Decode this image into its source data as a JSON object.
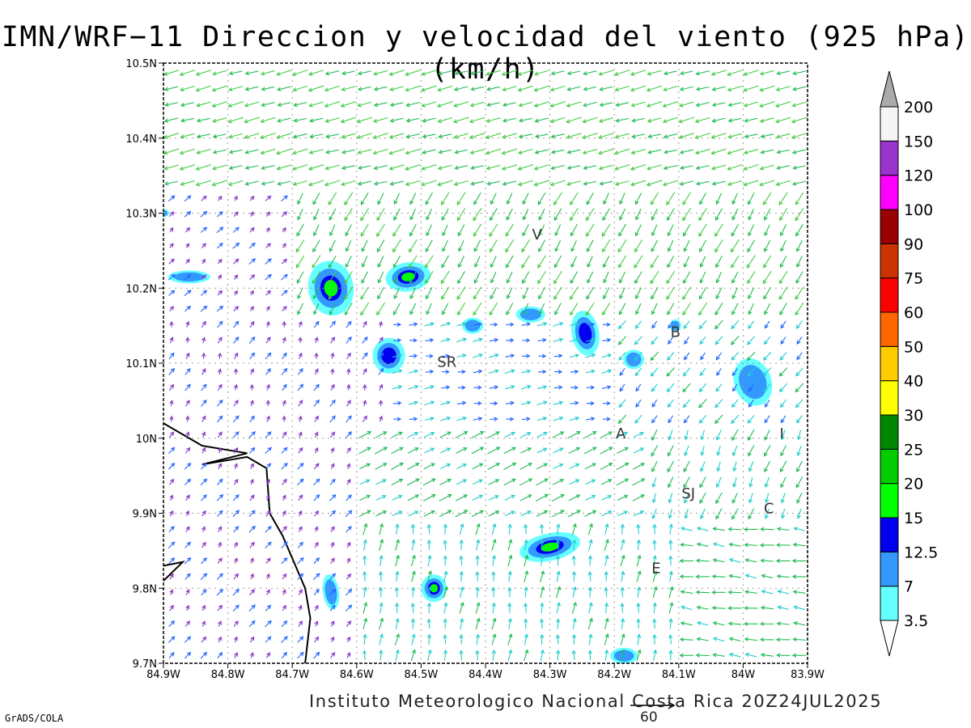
{
  "title": "IMN/WRF−11 Direccion y velocidad del viento (925 hPa)(km/h)",
  "footer": "Instituto Meteorologico Nacional Costa Rica 20Z24JUL2025",
  "credit": "GrADS/COLA",
  "reference_vector": {
    "value": "60",
    "units": "km/h"
  },
  "map": {
    "lon_range": [
      -84.9,
      -83.9
    ],
    "lat_range": [
      9.7,
      10.5
    ],
    "grid": "dotted",
    "x_ticks": [
      "84.9W",
      "84.8W",
      "84.7W",
      "84.6W",
      "84.5W",
      "84.4W",
      "84.3W",
      "84.2W",
      "84.1W",
      "84W",
      "83.9W"
    ],
    "y_ticks": [
      "9.7N",
      "9.8N",
      "9.9N",
      "10N",
      "10.1N",
      "10.2N",
      "10.3N",
      "10.4N",
      "10.5N"
    ],
    "place_labels": [
      {
        "text": "V",
        "lon": -84.32,
        "lat": 10.265
      },
      {
        "text": "SR",
        "lon": -84.46,
        "lat": 10.095
      },
      {
        "text": "B",
        "lon": -84.105,
        "lat": 10.135
      },
      {
        "text": "A",
        "lon": -84.19,
        "lat": 10.0
      },
      {
        "text": "I",
        "lon": -83.94,
        "lat": 10.0
      },
      {
        "text": "SJ",
        "lon": -84.085,
        "lat": 9.92
      },
      {
        "text": "C",
        "lon": -83.96,
        "lat": 9.9
      },
      {
        "text": "E",
        "lon": -84.135,
        "lat": 9.82
      }
    ]
  },
  "colorbar": {
    "labels": [
      "3.5",
      "7",
      "12.5",
      "15",
      "20",
      "25",
      "30",
      "40",
      "50",
      "60",
      "75",
      "90",
      "100",
      "120",
      "150",
      "200"
    ],
    "colors": [
      "#66ffff",
      "#3399ff",
      "#0000ee",
      "#00ff00",
      "#00cc00",
      "#008800",
      "#ffff00",
      "#ffcc00",
      "#ff6600",
      "#ff0000",
      "#cc3300",
      "#990000",
      "#ff00ff",
      "#9933cc",
      "#f5f5f5",
      "#aaaaaa"
    ]
  }
}
